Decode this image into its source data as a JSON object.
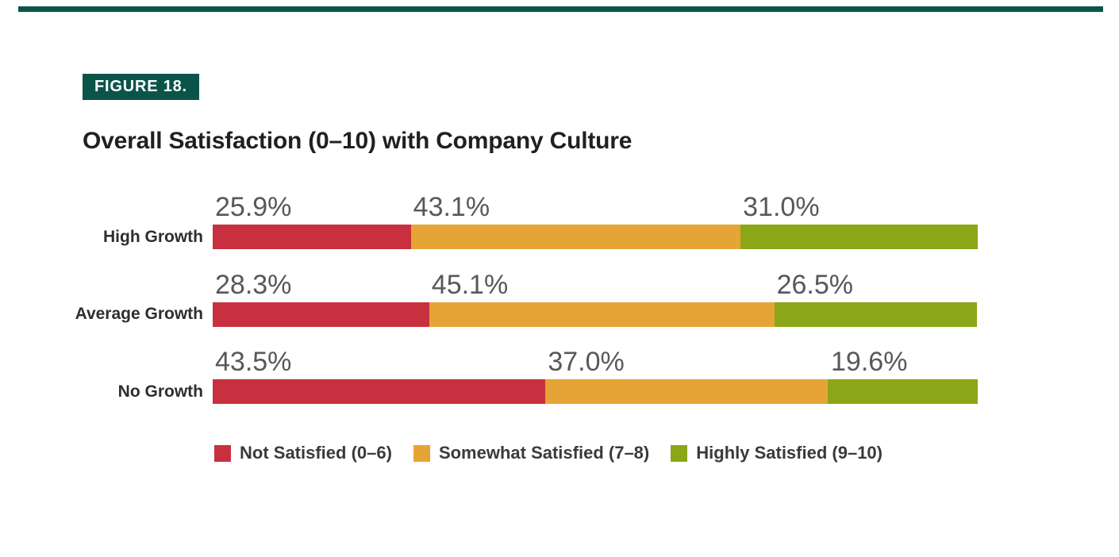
{
  "figure": {
    "badge": "FIGURE 18.",
    "title": "Overall Satisfaction (0–10) with Company Culture"
  },
  "colors": {
    "accent_teal": "#0B5449",
    "not_satisfied_red": "#C8303F",
    "somewhat_satisfied_amber": "#E6A436",
    "highly_satisfied_green": "#8BA617",
    "title_text": "#231F20",
    "value_label_text": "#57585C",
    "category_text": "#2E2E30",
    "legend_text": "#3A3A3C"
  },
  "chart_data": {
    "type": "bar",
    "subtype": "horizontal-stacked-100pct",
    "title": "Overall Satisfaction (0–10) with Company Culture",
    "categories": [
      "High Growth",
      "Average Growth",
      "No Growth"
    ],
    "series": [
      {
        "name": "Not Satisfied (0–6)",
        "color": "#C8303F",
        "values": [
          25.9,
          28.3,
          43.5
        ]
      },
      {
        "name": "Somewhat Satisfied (7–8)",
        "color": "#E6A436",
        "values": [
          43.1,
          45.1,
          37.0
        ]
      },
      {
        "name": "Highly Satisfied (9–10)",
        "color": "#8BA617",
        "values": [
          31.0,
          26.5,
          19.6
        ]
      }
    ],
    "value_labels": [
      [
        "25.9%",
        "43.1%",
        "31.0%"
      ],
      [
        "28.3%",
        "45.1%",
        "26.5%"
      ],
      [
        "43.5%",
        "37.0%",
        "19.6%"
      ]
    ],
    "unit": "%",
    "xlim": [
      0,
      100
    ],
    "grid": false,
    "legend_position": "bottom",
    "value_label_position": "above-segment-left-aligned"
  }
}
